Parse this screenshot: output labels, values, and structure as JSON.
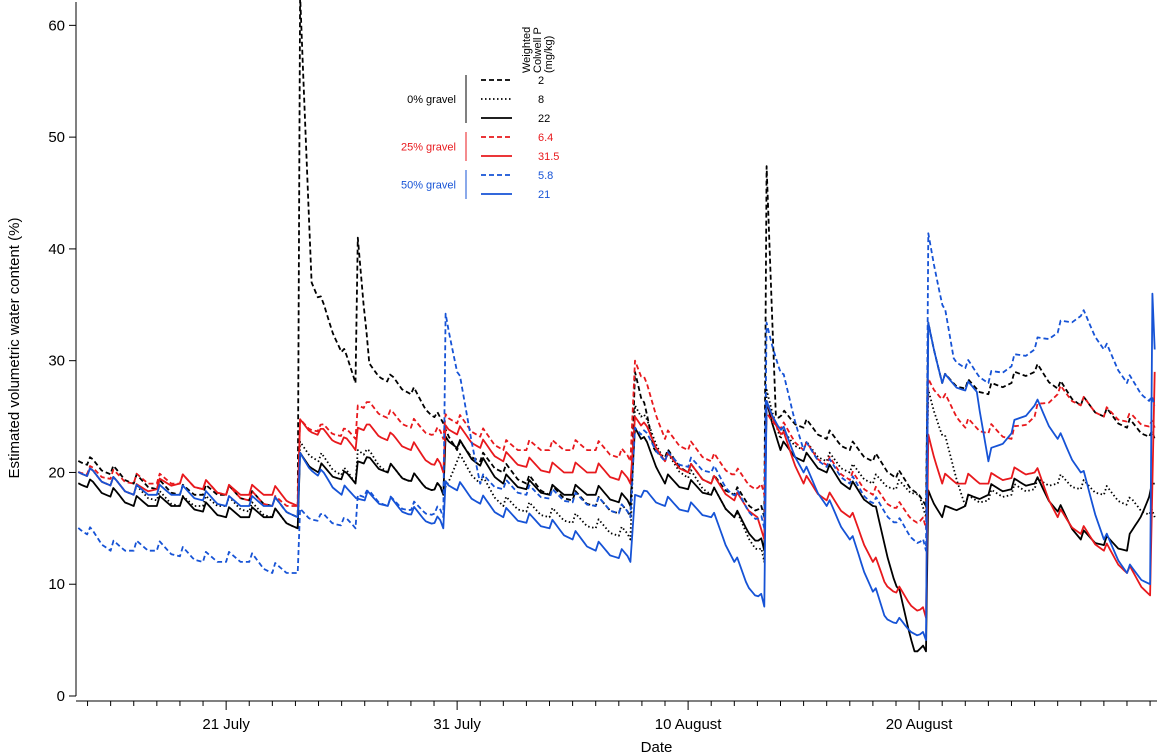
{
  "chart_data": {
    "type": "line",
    "title": "",
    "xlabel": "Date",
    "ylabel": "Estimated volumetric water content (%)",
    "x_unit": "day of year (2000 reference: 21 July = 0)",
    "ylim": [
      0,
      62
    ],
    "yticks": [
      0,
      10,
      20,
      30,
      40,
      50,
      60
    ],
    "xticks": [
      {
        "day": 0,
        "label": "21 July"
      },
      {
        "day": 10,
        "label": "31 July"
      },
      {
        "day": 20,
        "label": "10 August"
      },
      {
        "day": 30,
        "label": "20 August"
      }
    ],
    "xlim": [
      -6.5,
      40.3
    ],
    "grid": false,
    "legend": {
      "header": "Weighted Colwell P (mg/kg)",
      "placement": "top-center",
      "groups": [
        {
          "label": "0% gravel",
          "color": "#000000",
          "entries": [
            "2",
            "8",
            "22"
          ]
        },
        {
          "label": "25% gravel",
          "color": "#e8191d",
          "entries": [
            "6.4",
            "31.5"
          ]
        },
        {
          "label": "50% gravel",
          "color": "#1653d6",
          "entries": [
            "5.8",
            "21"
          ]
        }
      ]
    },
    "series": [
      {
        "name": "2",
        "group": "0% gravel",
        "color": "#000000",
        "dash": "dashed",
        "x": [
          -6.4,
          -4,
          -2,
          0,
          2,
          3.1,
          3.2,
          3.7,
          4.5,
          5.6,
          5.7,
          6.2,
          8,
          9.4,
          10,
          12,
          14,
          16,
          17.5,
          17.7,
          18.5,
          20,
          22,
          23.3,
          23.4,
          23.8,
          25,
          27,
          28,
          30,
          30.3,
          30.4,
          31,
          33,
          35,
          37,
          39,
          40.2
        ],
        "y": [
          21,
          19,
          18,
          18,
          17,
          16,
          62,
          37,
          33,
          28,
          41,
          29,
          27,
          24,
          22,
          20,
          18,
          17,
          16,
          29,
          22,
          20,
          18,
          16,
          47,
          25,
          24,
          22,
          21,
          18,
          17,
          33,
          28,
          27,
          29,
          26,
          24,
          23
        ]
      },
      {
        "name": "8",
        "group": "0% gravel",
        "color": "#000000",
        "dash": "dotted",
        "x": [
          -6.4,
          -4,
          -2,
          0,
          2,
          3.1,
          3.2,
          4,
          5.6,
          5.7,
          7,
          9.4,
          10,
          12,
          14,
          16,
          17.5,
          17.7,
          19,
          21,
          22,
          23.3,
          23.4,
          24,
          26,
          28,
          30,
          30.3,
          30.4,
          32,
          34,
          36,
          38,
          40.2
        ],
        "y": [
          20,
          18,
          17,
          17,
          16,
          15,
          22,
          21,
          19,
          22,
          20,
          18,
          21,
          17,
          16,
          15,
          14,
          26,
          21,
          18,
          16,
          12,
          27,
          23,
          21,
          19,
          18,
          16,
          27,
          17,
          18,
          19,
          18,
          16
        ]
      },
      {
        "name": "22",
        "group": "0% gravel",
        "color": "#000000",
        "dash": "solid",
        "x": [
          -6.4,
          -4,
          -2,
          0,
          2,
          3.1,
          3.2,
          4,
          5.6,
          5.7,
          7,
          9.4,
          9.5,
          12,
          14,
          16,
          17.5,
          17.7,
          19,
          21,
          22,
          23.3,
          23.4,
          24,
          26,
          28,
          29.8,
          30.3,
          30.4,
          31,
          33,
          35,
          37,
          39,
          40.2
        ],
        "y": [
          19,
          17,
          17,
          16,
          16,
          15,
          21,
          20,
          19,
          21,
          20,
          18,
          23,
          19,
          18,
          18,
          17,
          24,
          19,
          18,
          16,
          13,
          26,
          22,
          20,
          17,
          4,
          4,
          18,
          16,
          18,
          19,
          14,
          13,
          19
        ]
      },
      {
        "name": "6.4",
        "group": "25% gravel",
        "color": "#e8191d",
        "dash": "dashed",
        "x": [
          -6.4,
          -4,
          -2,
          0,
          2,
          3.1,
          3.2,
          5.6,
          5.7,
          8,
          9.4,
          9.5,
          12,
          14,
          16,
          17.5,
          17.7,
          19,
          21,
          23.3,
          23.4,
          25,
          28,
          30.3,
          30.4,
          32,
          34,
          36,
          38,
          40.2
        ],
        "y": [
          20,
          19,
          19,
          18,
          17,
          17,
          24,
          23,
          26,
          24,
          23,
          25,
          22,
          22,
          22,
          21,
          30,
          23,
          21,
          18,
          25,
          22,
          18,
          15,
          28,
          24,
          23,
          27,
          25,
          24
        ]
      },
      {
        "name": "31.5",
        "group": "25% gravel",
        "color": "#e8191d",
        "dash": "solid",
        "x": [
          -6.4,
          -4,
          -2,
          0,
          2,
          3.1,
          3.2,
          5.6,
          5.7,
          8,
          9.4,
          9.5,
          12,
          14,
          16,
          17.5,
          17.7,
          19,
          21,
          23,
          23.3,
          23.4,
          25,
          27,
          28.5,
          30.3,
          30.4,
          31,
          33,
          35,
          36,
          38,
          40,
          40.2
        ],
        "y": [
          20,
          18,
          19,
          18,
          18,
          17,
          24,
          22,
          24,
          22,
          20,
          24,
          21,
          20,
          20,
          19,
          25,
          21,
          19,
          16,
          14,
          26,
          19,
          16,
          10,
          7,
          23,
          19,
          19,
          20,
          16,
          13,
          9,
          29
        ]
      },
      {
        "name": "5.8",
        "group": "50% gravel",
        "color": "#1653d6",
        "dash": "dashed",
        "x": [
          -6.4,
          -5,
          -3,
          -1,
          1,
          2,
          3.1,
          3.2,
          5.6,
          5.7,
          7,
          9.4,
          9.5,
          11,
          13,
          16,
          17.5,
          17.7,
          19,
          21,
          23.3,
          23.4,
          25,
          27,
          30.3,
          30.4,
          31.5,
          33,
          35,
          37,
          39,
          40.2
        ],
        "y": [
          15,
          13,
          13,
          12,
          12,
          11,
          11,
          16,
          15,
          18,
          17,
          16,
          34,
          19,
          18,
          17,
          16,
          24,
          21,
          20,
          15,
          33,
          22,
          19,
          13,
          41,
          30,
          28,
          31,
          34,
          28,
          26
        ]
      },
      {
        "name": "21",
        "group": "50% gravel",
        "color": "#1653d6",
        "dash": "solid",
        "x": [
          -6.4,
          -4,
          -2,
          0,
          2,
          3.1,
          3.2,
          5,
          7,
          9.4,
          9.5,
          12,
          14,
          16,
          17.5,
          17.7,
          19,
          21,
          22.5,
          23.3,
          23.4,
          25,
          27,
          28.5,
          30.3,
          30.4,
          31,
          32.5,
          33,
          35,
          37,
          38,
          39,
          40,
          40.1,
          40.2
        ],
        "y": [
          20,
          18,
          18,
          17,
          17,
          16,
          21,
          18,
          17,
          15,
          19,
          16,
          15,
          13,
          12,
          18,
          17,
          16,
          10,
          8,
          26,
          20,
          14,
          7,
          5,
          33,
          28,
          27,
          21,
          26,
          20,
          14,
          11,
          10,
          36,
          31
        ]
      }
    ]
  }
}
